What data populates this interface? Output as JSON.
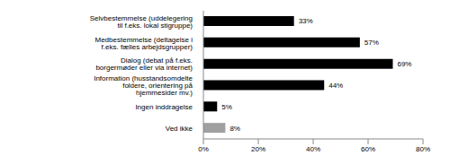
{
  "chart_data": {
    "type": "bar",
    "orientation": "horizontal",
    "categories": [
      "Selvbestemmelse (uddelegering til f.eks. lokal stigruppe)",
      "Medbestemmelse (deltagelse i f.eks. fælles arbejdsgrupper)",
      "Dialog (debat på f.eks. borgermøder eller via internet)",
      "Information (husstandsomdelte foldere, orientering på hjemmesider mv.)",
      "Ingen inddragelse",
      "Ved ikke"
    ],
    "values": [
      33,
      57,
      69,
      44,
      5,
      8
    ],
    "value_labels": [
      "33%",
      "57%",
      "69%",
      "44%",
      "5%",
      "8%"
    ],
    "data_labels": true,
    "colors": [
      "#000000",
      "#000000",
      "#000000",
      "#000000",
      "#000000",
      "#a0a0a0"
    ],
    "xlim": [
      0,
      80
    ],
    "xticks": [
      {
        "value": 0,
        "label": "0%"
      },
      {
        "value": 20,
        "label": "20%"
      },
      {
        "value": 40,
        "label": "40%"
      },
      {
        "value": 60,
        "label": "60%"
      },
      {
        "value": 80,
        "label": "80%"
      }
    ],
    "grid": false
  }
}
